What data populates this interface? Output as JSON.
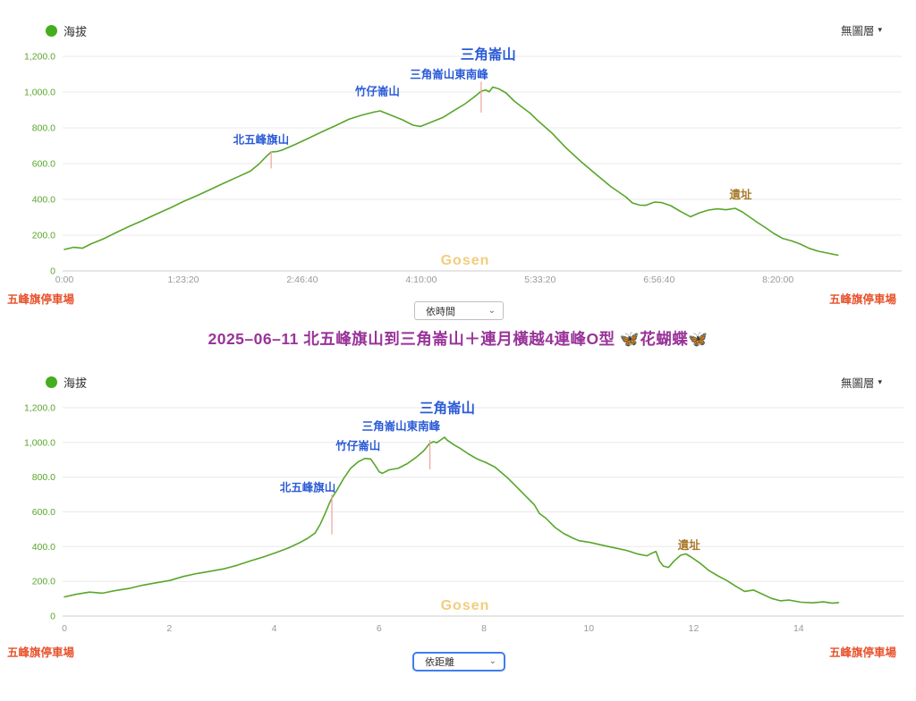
{
  "ui": {
    "legend_label": "海拔",
    "layer_select_label": "無圖層",
    "title": "2025–06–11 北五峰旗山到三角崙山＋連月橫越4連峰O型 🦋花蝴蝶🦋",
    "endpoint_label": "五峰旗停車場",
    "mode_time": "依時間",
    "mode_distance": "依距離"
  },
  "colors": {
    "line": "#58a62b",
    "legend_dot": "#46ad1e",
    "y_tick": "#58a62b",
    "x_tick": "#999999",
    "grid": "#e9e9e9",
    "axis": "#cccccc",
    "peak_label": "#2a5bd7",
    "site_label": "#a87b2d",
    "endpoint": "#e8502a",
    "title": "#993399",
    "watermark": "#f2cd7c",
    "marker": "#f2a19b"
  },
  "chart_data": [
    {
      "type": "line",
      "series_name": "海拔",
      "x_axis": "time",
      "x_unit": "seconds",
      "y_unit": "m",
      "xlim": [
        0,
        35200
      ],
      "ylim": [
        0,
        1200
      ],
      "grid": true,
      "watermark": "Gosen",
      "xticks": [
        {
          "v": 0,
          "label": "0:00"
        },
        {
          "v": 5000,
          "label": "1:23:20"
        },
        {
          "v": 10000,
          "label": "2:46:40"
        },
        {
          "v": 15000,
          "label": "4:10:00"
        },
        {
          "v": 20000,
          "label": "5:33:20"
        },
        {
          "v": 25000,
          "label": "6:56:40"
        },
        {
          "v": 30000,
          "label": "8:20:00"
        }
      ],
      "yticks": [
        {
          "v": 0,
          "label": "0"
        },
        {
          "v": 200,
          "label": "200.0"
        },
        {
          "v": 400,
          "label": "400.0"
        },
        {
          "v": 600,
          "label": "600.0"
        },
        {
          "v": 800,
          "label": "800.0"
        },
        {
          "v": 1000,
          "label": "1,000.0"
        },
        {
          "v": 1200,
          "label": "1,200.0"
        }
      ],
      "points": [
        [
          0,
          120
        ],
        [
          380,
          132
        ],
        [
          760,
          127
        ],
        [
          1130,
          152
        ],
        [
          1620,
          178
        ],
        [
          2180,
          215
        ],
        [
          2740,
          250
        ],
        [
          3310,
          283
        ],
        [
          3870,
          318
        ],
        [
          4440,
          352
        ],
        [
          5000,
          388
        ],
        [
          5560,
          420
        ],
        [
          6130,
          455
        ],
        [
          6690,
          490
        ],
        [
          7260,
          524
        ],
        [
          7820,
          558
        ],
        [
          8200,
          600
        ],
        [
          8500,
          642
        ],
        [
          8690,
          665
        ],
        [
          8950,
          668
        ],
        [
          9140,
          675
        ],
        [
          9700,
          707
        ],
        [
          10260,
          742
        ],
        [
          10830,
          778
        ],
        [
          11390,
          812
        ],
        [
          11960,
          848
        ],
        [
          12520,
          872
        ],
        [
          13010,
          888
        ],
        [
          13270,
          895
        ],
        [
          13650,
          875
        ],
        [
          14210,
          845
        ],
        [
          14660,
          815
        ],
        [
          14970,
          808
        ],
        [
          15420,
          832
        ],
        [
          15910,
          858
        ],
        [
          16390,
          898
        ],
        [
          16850,
          935
        ],
        [
          17220,
          972
        ],
        [
          17520,
          1005
        ],
        [
          17710,
          1012
        ],
        [
          17860,
          1002
        ],
        [
          18010,
          1028
        ],
        [
          18270,
          1018
        ],
        [
          18570,
          995
        ],
        [
          18910,
          950
        ],
        [
          19250,
          915
        ],
        [
          19600,
          880
        ],
        [
          19850,
          847
        ],
        [
          20490,
          772
        ],
        [
          21090,
          688
        ],
        [
          21730,
          610
        ],
        [
          22370,
          538
        ],
        [
          22970,
          472
        ],
        [
          23610,
          413
        ],
        [
          23880,
          380
        ],
        [
          24180,
          368
        ],
        [
          24440,
          367
        ],
        [
          24810,
          385
        ],
        [
          25110,
          382
        ],
        [
          25490,
          365
        ],
        [
          25870,
          335
        ],
        [
          26320,
          303
        ],
        [
          26700,
          325
        ],
        [
          27070,
          340
        ],
        [
          27450,
          347
        ],
        [
          27820,
          342
        ],
        [
          28200,
          350
        ],
        [
          28500,
          330
        ],
        [
          29060,
          278
        ],
        [
          29440,
          245
        ],
        [
          29820,
          210
        ],
        [
          30190,
          182
        ],
        [
          30570,
          168
        ],
        [
          30940,
          150
        ],
        [
          31320,
          126
        ],
        [
          31700,
          110
        ],
        [
          32070,
          100
        ],
        [
          32370,
          92
        ],
        [
          32520,
          88
        ]
      ],
      "annotations": [
        {
          "text": "北五峰旗山",
          "label_x": 8270,
          "label_y": 712,
          "marker_x": 8690,
          "marker_top": 668,
          "marker_bottom": 573
        },
        {
          "text": "竹仔崙山",
          "label_x": 13160,
          "label_y": 982
        },
        {
          "text": "三角崙山東南峰",
          "label_x": 16170,
          "label_y": 1078,
          "marker_x": 17520,
          "marker_top": 1058,
          "marker_bottom": 885
        },
        {
          "text": "三角崙山",
          "label_x": 17820,
          "label_y": 1185,
          "large": true
        },
        {
          "text": "遺址",
          "label_x": 28430,
          "label_y": 405,
          "site": true
        }
      ]
    },
    {
      "type": "line",
      "series_name": "海拔",
      "x_axis": "distance",
      "x_unit": "km",
      "y_unit": "m",
      "xlim": [
        0,
        16
      ],
      "ylim": [
        0,
        1200
      ],
      "grid": true,
      "watermark": "Gosen",
      "xticks": [
        {
          "v": 0,
          "label": "0"
        },
        {
          "v": 2,
          "label": "2"
        },
        {
          "v": 4,
          "label": "4"
        },
        {
          "v": 6,
          "label": "6"
        },
        {
          "v": 8,
          "label": "8"
        },
        {
          "v": 10,
          "label": "10"
        },
        {
          "v": 12,
          "label": "12"
        },
        {
          "v": 14,
          "label": "14"
        }
      ],
      "yticks": [
        {
          "v": 0,
          "label": "0"
        },
        {
          "v": 200,
          "label": "200.0"
        },
        {
          "v": 400,
          "label": "400.0"
        },
        {
          "v": 600,
          "label": "600.0"
        },
        {
          "v": 800,
          "label": "800.0"
        },
        {
          "v": 1000,
          "label": "1,000.0"
        },
        {
          "v": 1200,
          "label": "1,200.0"
        }
      ],
      "points": [
        [
          0,
          110
        ],
        [
          0.22,
          125
        ],
        [
          0.48,
          138
        ],
        [
          0.73,
          132
        ],
        [
          0.99,
          148
        ],
        [
          1.25,
          160
        ],
        [
          1.5,
          178
        ],
        [
          1.76,
          192
        ],
        [
          2.01,
          205
        ],
        [
          2.27,
          228
        ],
        [
          2.53,
          245
        ],
        [
          2.78,
          258
        ],
        [
          3.04,
          272
        ],
        [
          3.29,
          292
        ],
        [
          3.55,
          318
        ],
        [
          3.81,
          342
        ],
        [
          4.06,
          368
        ],
        [
          4.27,
          392
        ],
        [
          4.47,
          420
        ],
        [
          4.64,
          448
        ],
        [
          4.78,
          478
        ],
        [
          4.88,
          530
        ],
        [
          4.97,
          590
        ],
        [
          5.05,
          648
        ],
        [
          5.1,
          680
        ],
        [
          5.19,
          722
        ],
        [
          5.32,
          790
        ],
        [
          5.46,
          852
        ],
        [
          5.6,
          888
        ],
        [
          5.73,
          908
        ],
        [
          5.84,
          905
        ],
        [
          5.92,
          870
        ],
        [
          6.0,
          832
        ],
        [
          6.06,
          822
        ],
        [
          6.19,
          842
        ],
        [
          6.37,
          852
        ],
        [
          6.54,
          878
        ],
        [
          6.71,
          915
        ],
        [
          6.84,
          948
        ],
        [
          6.9,
          970
        ],
        [
          6.96,
          993
        ],
        [
          7.04,
          1005
        ],
        [
          7.1,
          998
        ],
        [
          7.18,
          1015
        ],
        [
          7.25,
          1030
        ],
        [
          7.3,
          1013
        ],
        [
          7.42,
          988
        ],
        [
          7.55,
          965
        ],
        [
          7.7,
          935
        ],
        [
          7.87,
          905
        ],
        [
          8.04,
          884
        ],
        [
          8.21,
          858
        ],
        [
          8.45,
          796
        ],
        [
          8.62,
          745
        ],
        [
          8.79,
          693
        ],
        [
          8.96,
          641
        ],
        [
          9.06,
          590
        ],
        [
          9.18,
          564
        ],
        [
          9.35,
          512
        ],
        [
          9.52,
          476
        ],
        [
          9.69,
          450
        ],
        [
          9.81,
          434
        ],
        [
          10.03,
          424
        ],
        [
          10.26,
          408
        ],
        [
          10.49,
          393
        ],
        [
          10.72,
          378
        ],
        [
          10.94,
          357
        ],
        [
          11.11,
          347
        ],
        [
          11.2,
          362
        ],
        [
          11.28,
          372
        ],
        [
          11.35,
          315
        ],
        [
          11.42,
          288
        ],
        [
          11.52,
          280
        ],
        [
          11.62,
          315
        ],
        [
          11.75,
          350
        ],
        [
          11.85,
          358
        ],
        [
          11.95,
          340
        ],
        [
          12.12,
          305
        ],
        [
          12.29,
          262
        ],
        [
          12.46,
          232
        ],
        [
          12.63,
          205
        ],
        [
          12.8,
          172
        ],
        [
          12.97,
          142
        ],
        [
          13.14,
          150
        ],
        [
          13.31,
          126
        ],
        [
          13.48,
          102
        ],
        [
          13.65,
          88
        ],
        [
          13.82,
          92
        ],
        [
          14.04,
          80
        ],
        [
          14.27,
          76
        ],
        [
          14.47,
          82
        ],
        [
          14.64,
          74
        ],
        [
          14.76,
          78
        ]
      ],
      "annotations": [
        {
          "text": "北五峰旗山",
          "label_x": 4.64,
          "label_y": 718,
          "marker_x": 5.1,
          "marker_top": 700,
          "marker_bottom": 470
        },
        {
          "text": "竹仔崙山",
          "label_x": 5.6,
          "label_y": 958
        },
        {
          "text": "三角崙山東南峰",
          "label_x": 6.42,
          "label_y": 1072,
          "marker_x": 6.97,
          "marker_top": 1015,
          "marker_bottom": 845
        },
        {
          "text": "三角崙山",
          "label_x": 7.3,
          "label_y": 1172,
          "large": true
        },
        {
          "text": "遺址",
          "label_x": 11.91,
          "label_y": 385,
          "site": true
        }
      ]
    }
  ]
}
